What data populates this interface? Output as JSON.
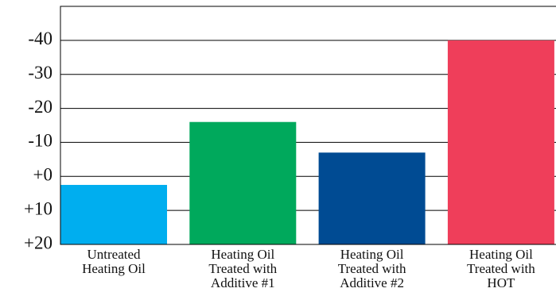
{
  "chart_data": {
    "type": "bar",
    "categories": [
      [
        "Untreated",
        "Heating Oil"
      ],
      [
        "Heating Oil",
        "Treated with",
        "Additive #1"
      ],
      [
        "Heating Oil",
        "Treated with",
        "Additive #2"
      ],
      [
        "Heating Oil",
        "Treated with",
        "HOT"
      ]
    ],
    "values": [
      2.5,
      -16,
      -7,
      -40
    ],
    "colors": [
      "#00aeef",
      "#00a95c",
      "#004b93",
      "#ef3e5a"
    ],
    "ylim": [
      20,
      -50
    ],
    "yticks": [
      {
        "value": 20,
        "label": "+20"
      },
      {
        "value": 10,
        "label": "+10"
      },
      {
        "value": 0,
        "label": "+0"
      },
      -10,
      -20,
      -30,
      -40
    ],
    "grid": true
  }
}
